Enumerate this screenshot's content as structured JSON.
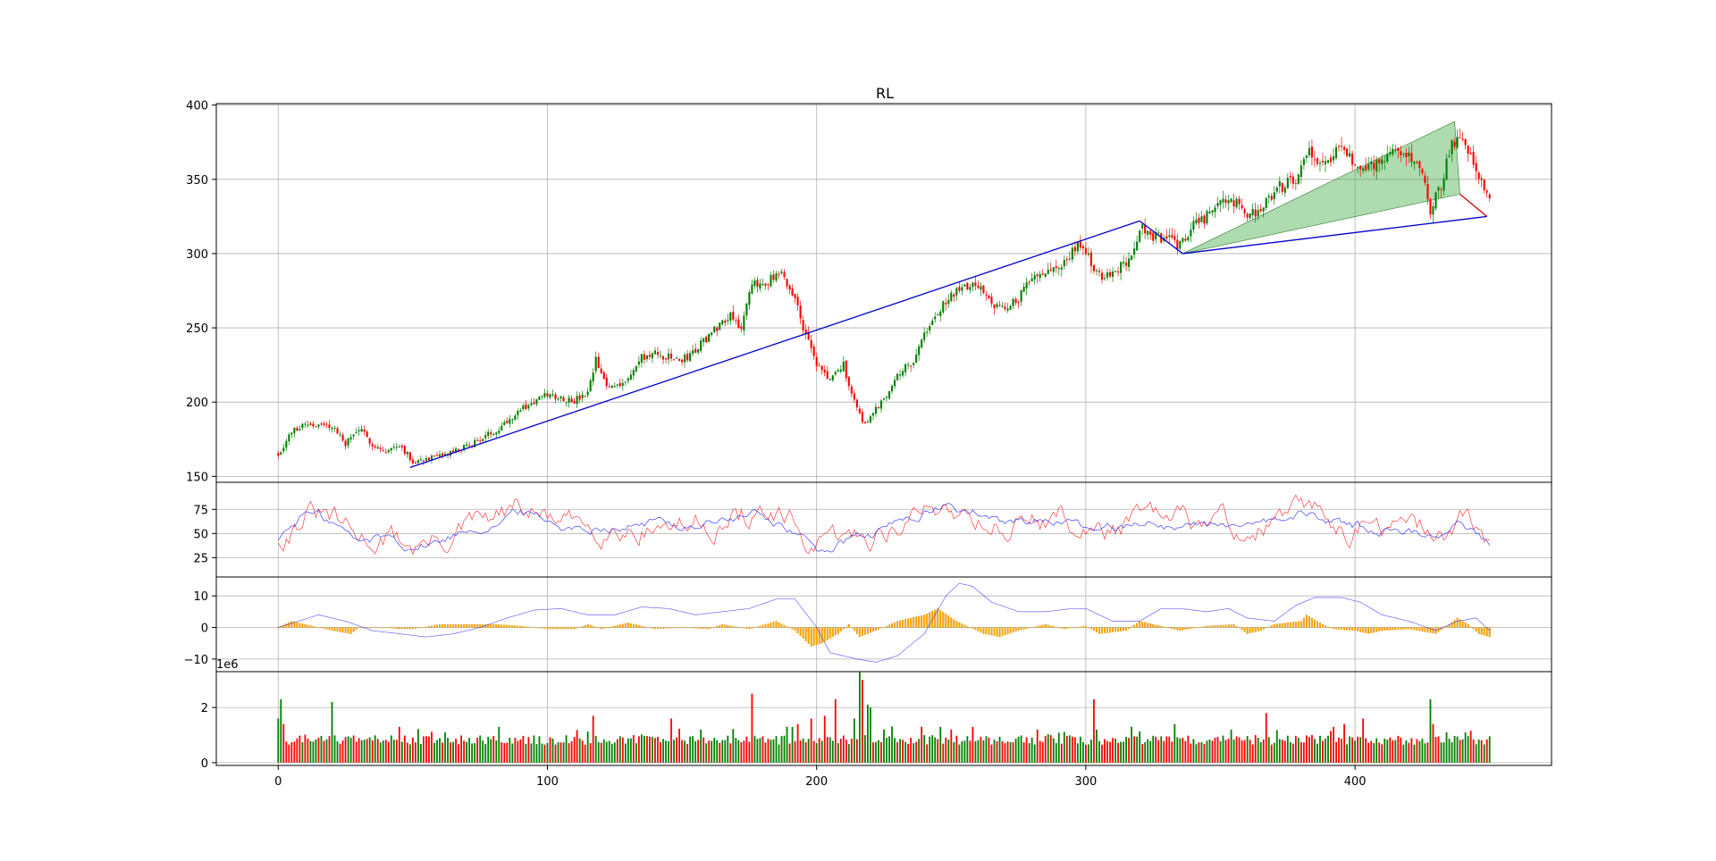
{
  "chart_data": {
    "title": "RL",
    "x_ticks": [
      0,
      100,
      200,
      300,
      400
    ],
    "x_range": [
      -23,
      473
    ],
    "panels": [
      {
        "id": "price",
        "type": "candlestick",
        "ylim": [
          146,
          401
        ],
        "y_ticks": [
          150,
          200,
          250,
          300,
          350,
          400
        ],
        "anchors": [
          [
            0,
            165
          ],
          [
            5,
            180
          ],
          [
            10,
            186
          ],
          [
            15,
            184
          ],
          [
            20,
            184
          ],
          [
            25,
            172
          ],
          [
            30,
            182
          ],
          [
            35,
            172
          ],
          [
            40,
            166
          ],
          [
            45,
            172
          ],
          [
            50,
            160
          ],
          [
            55,
            162
          ],
          [
            60,
            163
          ],
          [
            70,
            170
          ],
          [
            80,
            180
          ],
          [
            90,
            195
          ],
          [
            100,
            205
          ],
          [
            110,
            201
          ],
          [
            115,
            205
          ],
          [
            118,
            228
          ],
          [
            122,
            210
          ],
          [
            130,
            215
          ],
          [
            135,
            230
          ],
          [
            140,
            232
          ],
          [
            150,
            228
          ],
          [
            155,
            235
          ],
          [
            160,
            245
          ],
          [
            168,
            260
          ],
          [
            172,
            250
          ],
          [
            176,
            278
          ],
          [
            182,
            282
          ],
          [
            187,
            285
          ],
          [
            192,
            270
          ],
          [
            196,
            245
          ],
          [
            200,
            225
          ],
          [
            205,
            215
          ],
          [
            210,
            225
          ],
          [
            214,
            200
          ],
          [
            218,
            185
          ],
          [
            222,
            195
          ],
          [
            226,
            205
          ],
          [
            230,
            220
          ],
          [
            235,
            225
          ],
          [
            240,
            245
          ],
          [
            245,
            260
          ],
          [
            250,
            272
          ],
          [
            258,
            280
          ],
          [
            262,
            275
          ],
          [
            268,
            262
          ],
          [
            275,
            270
          ],
          [
            282,
            288
          ],
          [
            290,
            290
          ],
          [
            297,
            305
          ],
          [
            300,
            300
          ],
          [
            305,
            285
          ],
          [
            312,
            290
          ],
          [
            318,
            300
          ],
          [
            320,
            318
          ],
          [
            325,
            312
          ],
          [
            330,
            310
          ],
          [
            335,
            305
          ],
          [
            340,
            320
          ],
          [
            345,
            325
          ],
          [
            350,
            335
          ],
          [
            355,
            335
          ],
          [
            360,
            325
          ],
          [
            365,
            330
          ],
          [
            372,
            345
          ],
          [
            378,
            350
          ],
          [
            382,
            370
          ],
          [
            388,
            360
          ],
          [
            393,
            370
          ],
          [
            398,
            365
          ],
          [
            403,
            355
          ],
          [
            410,
            365
          ],
          [
            416,
            368
          ],
          [
            420,
            365
          ],
          [
            425,
            357
          ],
          [
            428,
            330
          ],
          [
            432,
            345
          ],
          [
            436,
            375
          ],
          [
            440,
            380
          ],
          [
            444,
            360
          ],
          [
            446,
            348
          ],
          [
            450,
            340
          ]
        ],
        "trendlines": [
          {
            "points": [
              [
                49,
                156
              ],
              [
                320,
                322
              ]
            ],
            "color": "#0000cc"
          },
          {
            "points": [
              [
                320,
                322
              ],
              [
                336,
                300
              ]
            ],
            "color": "#0000cc"
          },
          {
            "points": [
              [
                336,
                300
              ],
              [
                449,
                325
              ]
            ],
            "color": "#0000cc"
          },
          {
            "points": [
              [
                439,
                340
              ],
              [
                449,
                325
              ]
            ],
            "color": "#cc0000"
          }
        ],
        "wedge": {
          "points": [
            [
              336,
              300
            ],
            [
              437,
              389
            ],
            [
              439,
              340
            ]
          ],
          "fill": "#4caf50"
        }
      },
      {
        "id": "oscillator",
        "type": "line",
        "ylim": [
          5,
          103
        ],
        "y_ticks": [
          25,
          50,
          75
        ],
        "series": [
          {
            "color": "#ff0000",
            "volatility": 22
          },
          {
            "color": "#0000ff",
            "volatility": 9
          }
        ],
        "anchors": [
          [
            0,
            45
          ],
          [
            10,
            72
          ],
          [
            20,
            62
          ],
          [
            30,
            40
          ],
          [
            40,
            48
          ],
          [
            50,
            38
          ],
          [
            60,
            42
          ],
          [
            70,
            55
          ],
          [
            80,
            62
          ],
          [
            90,
            72
          ],
          [
            100,
            65
          ],
          [
            110,
            55
          ],
          [
            120,
            60
          ],
          [
            130,
            58
          ],
          [
            140,
            62
          ],
          [
            150,
            58
          ],
          [
            160,
            62
          ],
          [
            170,
            65
          ],
          [
            180,
            70
          ],
          [
            190,
            55
          ],
          [
            200,
            32
          ],
          [
            210,
            40
          ],
          [
            220,
            48
          ],
          [
            230,
            60
          ],
          [
            240,
            72
          ],
          [
            250,
            78
          ],
          [
            260,
            70
          ],
          [
            270,
            58
          ],
          [
            280,
            65
          ],
          [
            290,
            65
          ],
          [
            300,
            52
          ],
          [
            310,
            55
          ],
          [
            320,
            65
          ],
          [
            330,
            58
          ],
          [
            340,
            60
          ],
          [
            350,
            62
          ],
          [
            360,
            52
          ],
          [
            370,
            62
          ],
          [
            380,
            70
          ],
          [
            390,
            65
          ],
          [
            400,
            58
          ],
          [
            410,
            55
          ],
          [
            420,
            52
          ],
          [
            430,
            50
          ],
          [
            440,
            62
          ],
          [
            450,
            38
          ]
        ]
      },
      {
        "id": "macd",
        "type": "histogram-line",
        "ylim": [
          -14,
          16
        ],
        "y_ticks": [
          -10,
          0,
          10
        ],
        "hist_color": "#ffa500",
        "line_color": "#0000ff",
        "hist_anchors": [
          [
            0,
            0
          ],
          [
            5,
            2
          ],
          [
            10,
            1
          ],
          [
            20,
            -1
          ],
          [
            27,
            -2
          ],
          [
            30,
            0
          ],
          [
            40,
            0
          ],
          [
            45,
            -0.5
          ],
          [
            50,
            -0.5
          ],
          [
            60,
            1
          ],
          [
            70,
            1
          ],
          [
            80,
            1
          ],
          [
            90,
            0.5
          ],
          [
            100,
            -0.5
          ],
          [
            110,
            -0.5
          ],
          [
            115,
            1
          ],
          [
            120,
            -0.5
          ],
          [
            130,
            1.5
          ],
          [
            140,
            -0.5
          ],
          [
            150,
            0
          ],
          [
            160,
            -0.5
          ],
          [
            165,
            1
          ],
          [
            175,
            -0.5
          ],
          [
            185,
            2
          ],
          [
            192,
            -1
          ],
          [
            198,
            -6
          ],
          [
            202,
            -5
          ],
          [
            208,
            -2
          ],
          [
            212,
            1
          ],
          [
            216,
            -3
          ],
          [
            222,
            -1
          ],
          [
            230,
            2
          ],
          [
            240,
            4
          ],
          [
            245,
            6
          ],
          [
            252,
            2
          ],
          [
            262,
            -2
          ],
          [
            268,
            -3
          ],
          [
            275,
            -1
          ],
          [
            285,
            1
          ],
          [
            292,
            -0.5
          ],
          [
            300,
            0.5
          ],
          [
            305,
            -2
          ],
          [
            315,
            -1
          ],
          [
            320,
            2
          ],
          [
            325,
            1
          ],
          [
            335,
            -1
          ],
          [
            345,
            0.5
          ],
          [
            355,
            1
          ],
          [
            360,
            -2
          ],
          [
            365,
            -1
          ],
          [
            370,
            1
          ],
          [
            380,
            2
          ],
          [
            382,
            4
          ],
          [
            388,
            1
          ],
          [
            392,
            -0.5
          ],
          [
            400,
            -1
          ],
          [
            405,
            -2
          ],
          [
            410,
            -1
          ],
          [
            420,
            -0.5
          ],
          [
            430,
            -2
          ],
          [
            435,
            1
          ],
          [
            438,
            3
          ],
          [
            442,
            1
          ],
          [
            446,
            -2
          ],
          [
            450,
            -3
          ]
        ],
        "line_anchors": [
          [
            0,
            0
          ],
          [
            15,
            4
          ],
          [
            25,
            2
          ],
          [
            35,
            -1
          ],
          [
            45,
            -2
          ],
          [
            55,
            -3
          ],
          [
            65,
            -2
          ],
          [
            75,
            0
          ],
          [
            85,
            3
          ],
          [
            95,
            5.5
          ],
          [
            105,
            6
          ],
          [
            115,
            4
          ],
          [
            125,
            4
          ],
          [
            135,
            6.5
          ],
          [
            145,
            6
          ],
          [
            155,
            4
          ],
          [
            165,
            5
          ],
          [
            175,
            6
          ],
          [
            185,
            9
          ],
          [
            192,
            9
          ],
          [
            200,
            0
          ],
          [
            205,
            -8
          ],
          [
            215,
            -10
          ],
          [
            222,
            -11
          ],
          [
            230,
            -9
          ],
          [
            240,
            -2
          ],
          [
            248,
            10
          ],
          [
            253,
            14
          ],
          [
            258,
            13
          ],
          [
            265,
            8
          ],
          [
            275,
            5
          ],
          [
            285,
            5
          ],
          [
            295,
            6
          ],
          [
            300,
            6
          ],
          [
            310,
            2
          ],
          [
            320,
            2
          ],
          [
            328,
            6
          ],
          [
            335,
            6
          ],
          [
            345,
            5
          ],
          [
            353,
            6
          ],
          [
            360,
            3
          ],
          [
            370,
            2
          ],
          [
            378,
            7
          ],
          [
            385,
            9.5
          ],
          [
            395,
            9.5
          ],
          [
            402,
            8
          ],
          [
            410,
            4
          ],
          [
            420,
            2
          ],
          [
            430,
            -1
          ],
          [
            438,
            2
          ],
          [
            445,
            3
          ],
          [
            450,
            -1
          ]
        ]
      },
      {
        "id": "volume",
        "type": "bar",
        "ylim": [
          -0.1,
          3.3
        ],
        "y_ticks": [
          0,
          2
        ],
        "offset_label": "1e6",
        "base": 0.65,
        "spikes": [
          [
            0,
            1.6
          ],
          [
            1,
            2.3
          ],
          [
            2,
            1.4
          ],
          [
            20,
            2.2
          ],
          [
            45,
            1.3
          ],
          [
            82,
            1.3
          ],
          [
            117,
            1.7
          ],
          [
            146,
            1.6
          ],
          [
            157,
            1.2
          ],
          [
            176,
            2.5
          ],
          [
            189,
            1.3
          ],
          [
            193,
            1.4
          ],
          [
            198,
            1.6
          ],
          [
            203,
            1.7
          ],
          [
            207,
            2.3
          ],
          [
            214,
            1.6
          ],
          [
            216,
            3.3
          ],
          [
            217,
            3.0
          ],
          [
            219,
            2.1
          ],
          [
            220,
            2.0
          ],
          [
            225,
            1.2
          ],
          [
            239,
            1.3
          ],
          [
            246,
            1.3
          ],
          [
            250,
            1.2
          ],
          [
            258,
            1.3
          ],
          [
            282,
            1.2
          ],
          [
            303,
            2.3
          ],
          [
            333,
            1.4
          ],
          [
            354,
            1.2
          ],
          [
            367,
            1.8
          ],
          [
            392,
            1.3
          ],
          [
            396,
            1.4
          ],
          [
            403,
            1.6
          ],
          [
            428,
            2.3
          ],
          [
            429,
            1.4
          ],
          [
            441,
            1.1
          ]
        ]
      }
    ],
    "n_bars": 451
  }
}
